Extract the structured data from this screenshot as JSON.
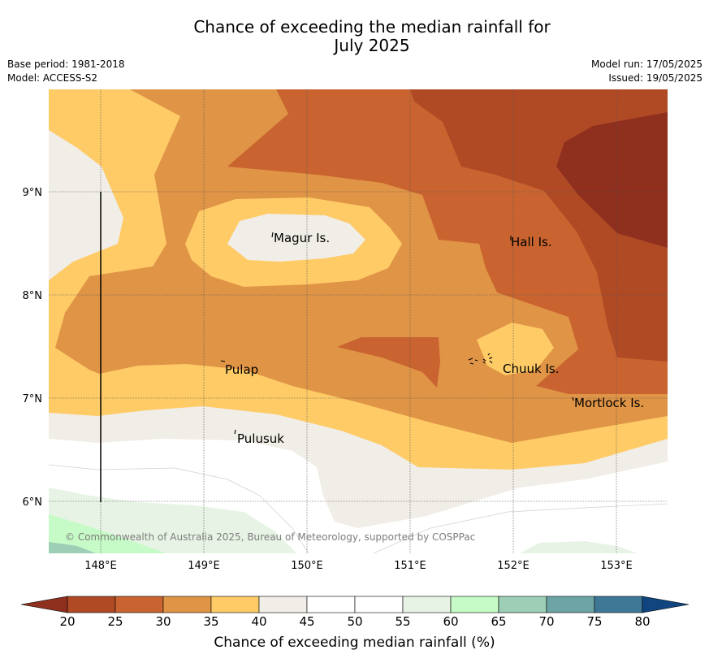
{
  "title": {
    "line1": "Chance of exceeding the median rainfall for",
    "line2": "July 2025"
  },
  "meta_left": {
    "base_period": "Base period: 1981-2018",
    "model": "Model: ACCESS-S2"
  },
  "meta_right": {
    "model_run": "Model run: 17/05/2025",
    "issued": "Issued: 19/05/2025"
  },
  "map": {
    "lon_ticks": [
      "148°E",
      "149°E",
      "150°E",
      "151°E",
      "152°E",
      "153°E"
    ],
    "lat_ticks": [
      "9°N",
      "8°N",
      "7°N",
      "6°N"
    ],
    "places": {
      "magur": "Magur Is.",
      "hall": "Hall Is.",
      "pulap": "Pulap",
      "chuuk": "Chuuk Is.",
      "mortlock": "Mortlock Is.",
      "pulusuk": "Pulusuk"
    },
    "copyright": "© Commonwealth of Australia 2025, Bureau of Meteorology, supported by COSPPac"
  },
  "colorbar": {
    "label": "Chance of exceeding median rainfall (%)",
    "ticks": [
      "20",
      "25",
      "30",
      "35",
      "40",
      "45",
      "50",
      "55",
      "60",
      "65",
      "70",
      "75",
      "80"
    ],
    "colors": [
      "#b04a25",
      "#c96430",
      "#e09446",
      "#fecb66",
      "#f1ede7",
      "#ffffff",
      "#ffffff",
      "#e7f4e5",
      "#c6fac6",
      "#9ccfb6",
      "#6da4a6",
      "#3e7896"
    ],
    "under_color": "#8f2f1e",
    "over_color": "#10457f"
  }
}
